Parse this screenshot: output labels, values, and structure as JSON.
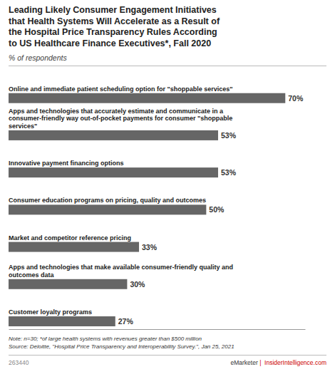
{
  "chart_data": {
    "type": "bar",
    "orientation": "horizontal",
    "title": "Leading Likely Consumer Engagement Initiatives\nthat Health Systems Will Accelerate as a Result of\nthe Hospital Price Transparency Rules According\nto US Healthcare Finance Executives*, Fall 2020",
    "subtitle": "% of respondents",
    "categories": [
      "Online and immediate patient scheduling option for \"shoppable services\"",
      "Apps and technologies that accurately estimate and communicate in a\nconsumer-friendly way out-of-pocket payments for consumer \"shoppable\nservices\"",
      "Innovative payment financing options",
      "Consumer education programs on pricing, quality and outcomes",
      "Market and competitor reference pricing",
      "Apps and technologies that make available consumer-friendly quality and\noutcomes data",
      "Customer loyalty programs"
    ],
    "values": [
      70,
      53,
      53,
      50,
      33,
      30,
      27
    ],
    "value_labels": [
      "70%",
      "53%",
      "53%",
      "50%",
      "33%",
      "30%",
      "27%"
    ],
    "data_labels": true,
    "color": "#666666",
    "xlim": [
      0,
      75
    ],
    "tick_labels": "y",
    "grid": false,
    "annotations": [
      "Note: n=30; *of large health systems with revenues greater than $500 million\nSource: Deloitte, \"Hospital Price Transparency and Interoperability Survey.\", Jan 25, 2021",
      "263440",
      "eMarketer",
      " |  InsiderIntelligence.com"
    ]
  }
}
